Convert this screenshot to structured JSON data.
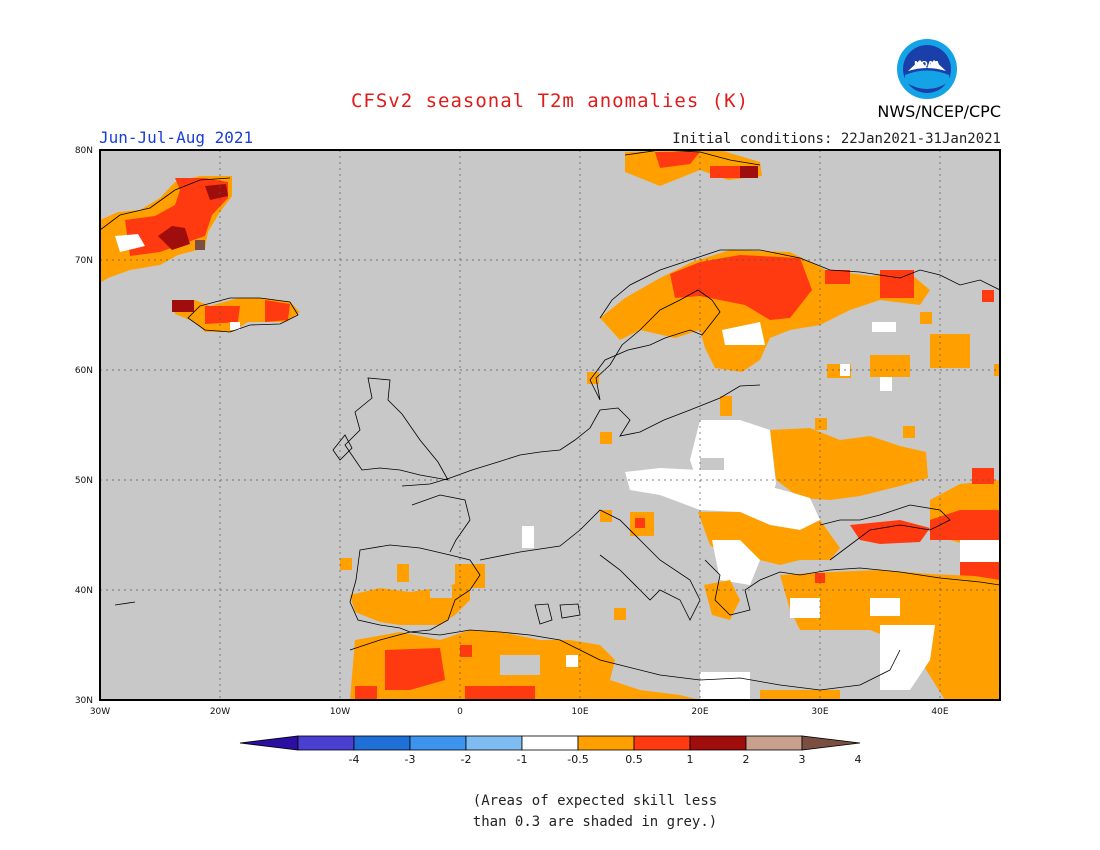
{
  "header": {
    "title": "CFSv2 seasonal T2m anomalies (K)",
    "season": "Jun-Jul-Aug 2021",
    "initial_conditions": "Initial conditions: 22Jan2021-31Jan2021",
    "agency": "NWS/NCEP/CPC",
    "logo_text": "NOAA"
  },
  "colors": {
    "title": "#e01b1b",
    "season": "#1a3fd6",
    "skill_grey": "#c8c8c8",
    "land_white": "#ffffff"
  },
  "map": {
    "lon_labels": [
      "30W",
      "20W",
      "10W",
      "0",
      "10E",
      "20E",
      "30E",
      "40E"
    ],
    "lat_labels": [
      "80N",
      "70N",
      "60N",
      "50N",
      "40N",
      "30N"
    ],
    "extent": {
      "lon": [
        -30,
        45
      ],
      "lat": [
        30,
        80
      ]
    },
    "grid": "dotted every 10 degrees"
  },
  "colorbar": {
    "labels": [
      "-4",
      "-3",
      "-2",
      "-1",
      "-0.5",
      "0.5",
      "1",
      "2",
      "3",
      "4"
    ],
    "colors": [
      "#2b0fa3",
      "#4a3fd0",
      "#1e6fd6",
      "#3c94ef",
      "#7fbcf2",
      "#ffffff",
      "#ffa000",
      "#ff3a10",
      "#a00d0d",
      "#c9a08e",
      "#7a4f41"
    ]
  },
  "note": {
    "line1": "(Areas of expected skill less",
    "line2": "than 0.3 are shaded in grey.)"
  }
}
